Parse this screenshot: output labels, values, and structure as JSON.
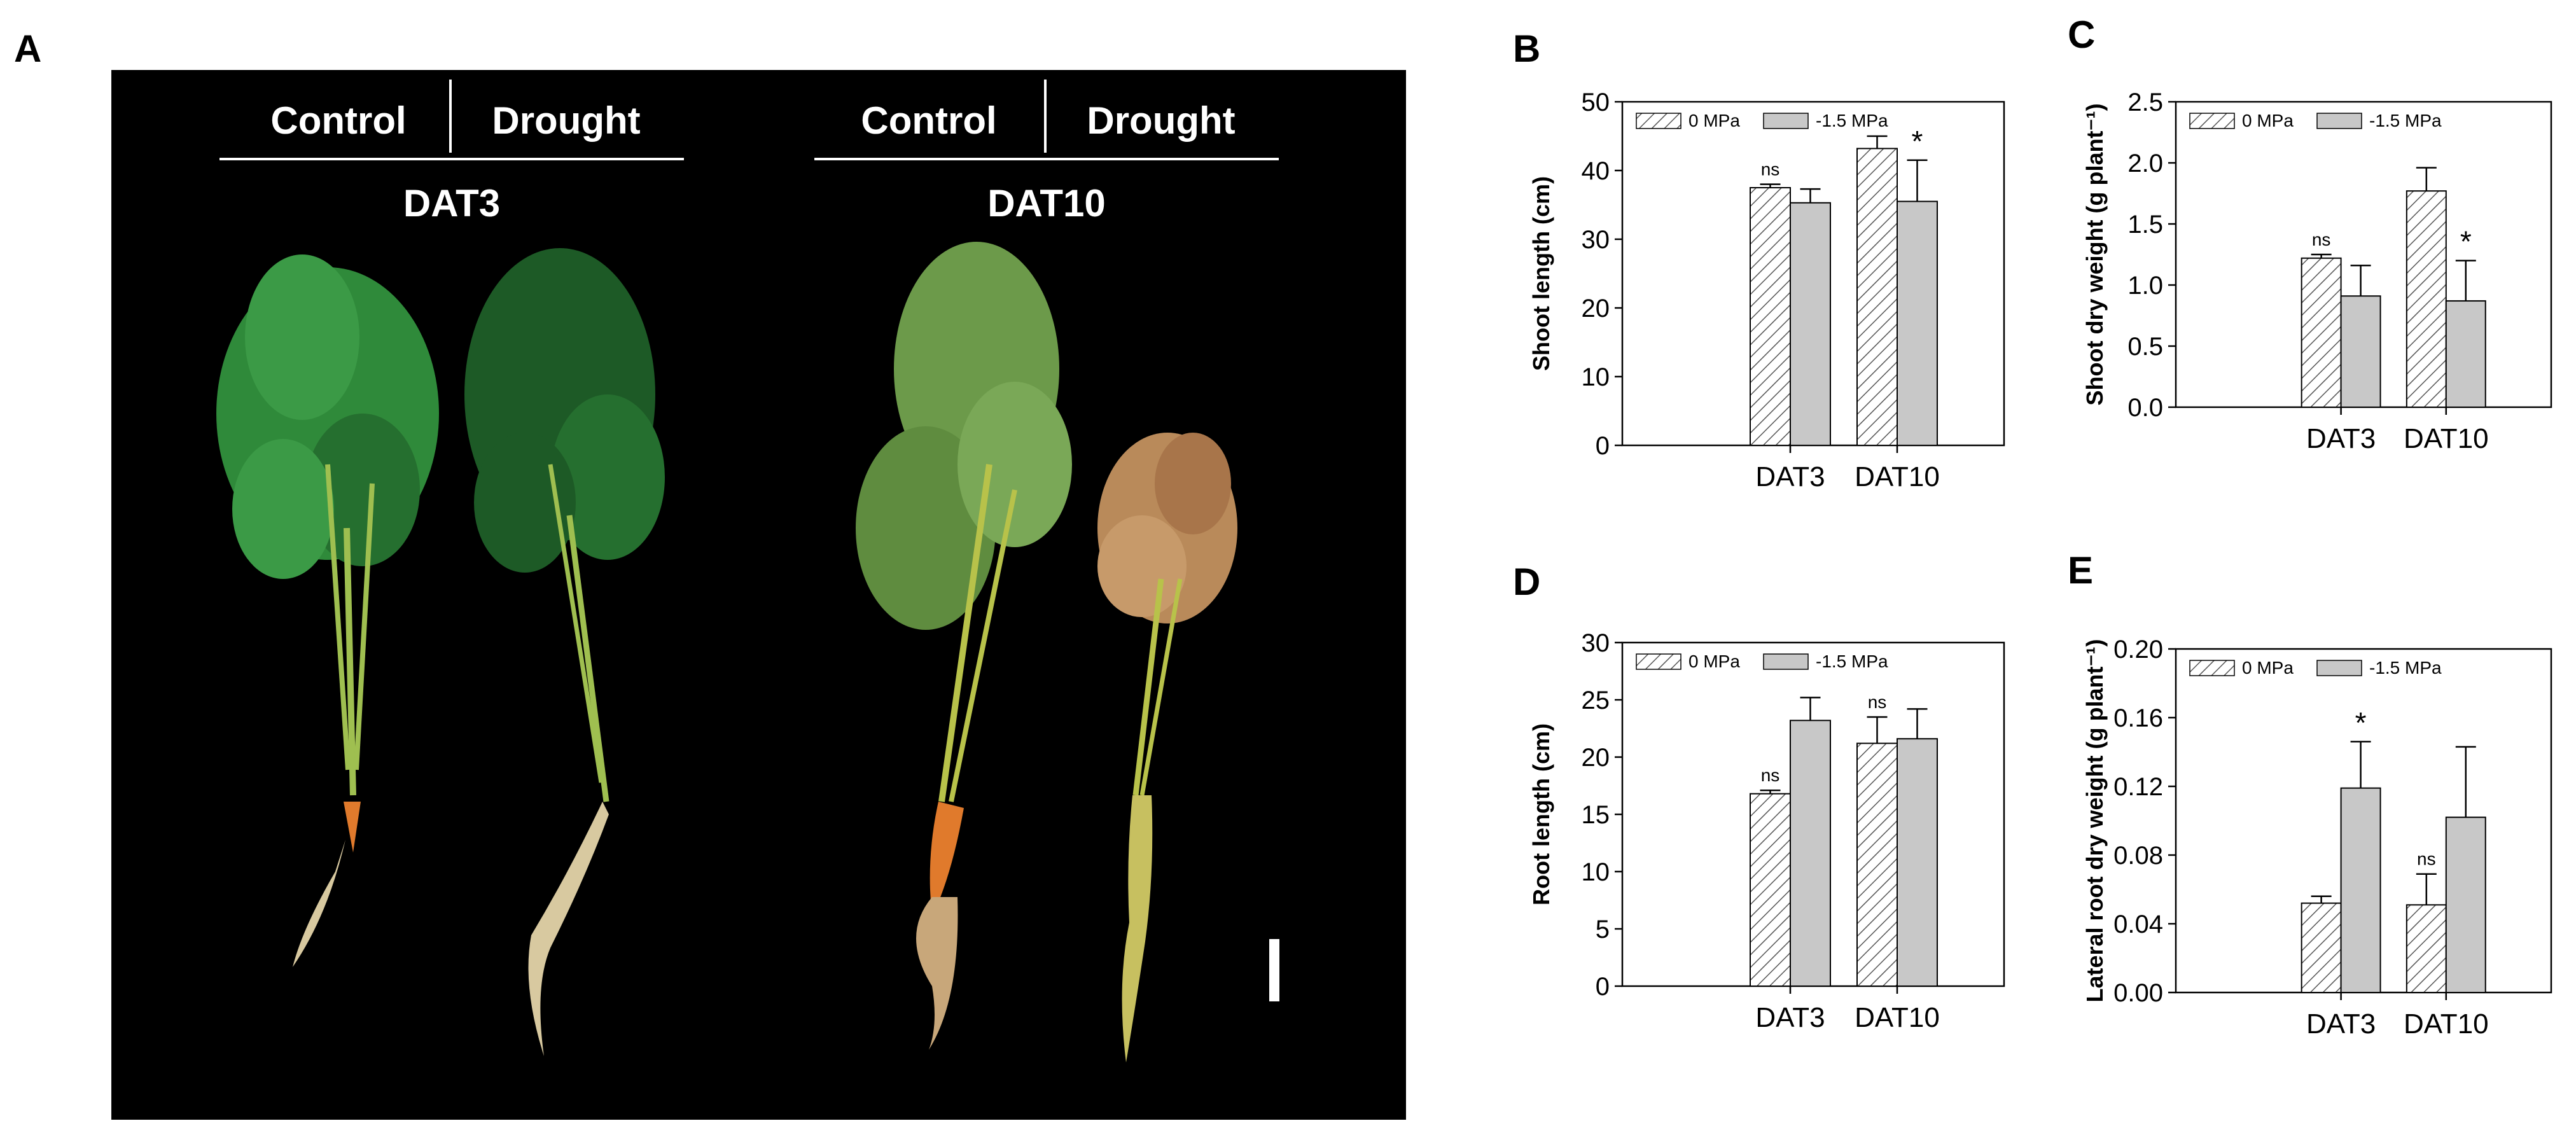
{
  "panel_labels": {
    "a": "A",
    "b": "B",
    "c": "C",
    "d": "D",
    "e": "E"
  },
  "photo": {
    "left_group": {
      "col1": "Control",
      "col2": "Drought",
      "title": "DAT3"
    },
    "right_group": {
      "col1": "Control",
      "col2": "Drought",
      "title": "DAT10"
    }
  },
  "colors": {
    "bar_fill": "#c8c8c8",
    "hatch_line": "#555555",
    "leaf_green": "#2f8a3a",
    "leaf_dark": "#1d5a26",
    "leaf_dry": "#b98a5a",
    "carrot_orange": "#e07a2c",
    "root_pale": "#d8c9a0",
    "stem_yellow": "#b8c24a"
  },
  "chart_data": [
    {
      "id": "B",
      "type": "bar",
      "categories": [
        "DAT3",
        "DAT10"
      ],
      "ylabel": "Shoot length (cm)",
      "ylim": [
        0,
        50
      ],
      "yticks": [
        0,
        10,
        20,
        30,
        40,
        50
      ],
      "ytick_labels": [
        "0",
        "10",
        "20",
        "30",
        "40",
        "50"
      ],
      "legend": "top-left",
      "series": [
        {
          "name": "0 MPa",
          "pattern": "hatched",
          "values": [
            37.5,
            43.2
          ],
          "errors": [
            0.5,
            1.8
          ]
        },
        {
          "name": "-1.5 MPa",
          "pattern": "solid",
          "values": [
            35.3,
            35.5
          ],
          "errors": [
            2.0,
            6.0
          ]
        }
      ],
      "annotations": [
        {
          "category": 0,
          "series": 0,
          "text": "ns"
        },
        {
          "category": 1,
          "series": 1,
          "text": "*"
        }
      ]
    },
    {
      "id": "C",
      "type": "bar",
      "categories": [
        "DAT3",
        "DAT10"
      ],
      "ylabel": "Shoot dry weight (g plant⁻¹)",
      "ylim": [
        0,
        2.5
      ],
      "yticks": [
        0,
        0.5,
        1.0,
        1.5,
        2.0,
        2.5
      ],
      "ytick_labels": [
        "0.0",
        "0.5",
        "1.0",
        "1.5",
        "2.0",
        "2.5"
      ],
      "legend": "top-left",
      "series": [
        {
          "name": "0 MPa",
          "pattern": "hatched",
          "values": [
            1.22,
            1.77
          ],
          "errors": [
            0.03,
            0.19
          ]
        },
        {
          "name": "-1.5 MPa",
          "pattern": "solid",
          "values": [
            0.91,
            0.87
          ],
          "errors": [
            0.25,
            0.33
          ]
        }
      ],
      "annotations": [
        {
          "category": 0,
          "series": 0,
          "text": "ns"
        },
        {
          "category": 1,
          "series": 1,
          "text": "*"
        }
      ]
    },
    {
      "id": "D",
      "type": "bar",
      "categories": [
        "DAT3",
        "DAT10"
      ],
      "ylabel": "Root length (cm)",
      "ylim": [
        0,
        30
      ],
      "yticks": [
        0,
        5,
        10,
        15,
        20,
        25,
        30
      ],
      "ytick_labels": [
        "0",
        "5",
        "10",
        "15",
        "20",
        "25",
        "30"
      ],
      "legend": "top-left",
      "series": [
        {
          "name": "0 MPa",
          "pattern": "hatched",
          "values": [
            16.8,
            21.2
          ],
          "errors": [
            0.3,
            2.3
          ]
        },
        {
          "name": "-1.5 MPa",
          "pattern": "solid",
          "values": [
            23.2,
            21.6
          ],
          "errors": [
            2.0,
            2.6
          ]
        }
      ],
      "annotations": [
        {
          "category": 0,
          "series": 0,
          "text": "ns"
        },
        {
          "category": 1,
          "series": 0,
          "text": "ns"
        }
      ]
    },
    {
      "id": "E",
      "type": "bar",
      "categories": [
        "DAT3",
        "DAT10"
      ],
      "ylabel": "Lateral root dry weight (g plant⁻¹)",
      "ylim": [
        0,
        0.2
      ],
      "yticks": [
        0,
        0.04,
        0.08,
        0.12,
        0.16,
        0.2
      ],
      "ytick_labels": [
        "0.00",
        "0.04",
        "0.08",
        "0.12",
        "0.16",
        "0.20"
      ],
      "legend": "top-left",
      "series": [
        {
          "name": "0 MPa",
          "pattern": "hatched",
          "values": [
            0.052,
            0.051
          ],
          "errors": [
            0.004,
            0.018
          ]
        },
        {
          "name": "-1.5 MPa",
          "pattern": "solid",
          "values": [
            0.119,
            0.102
          ],
          "errors": [
            0.027,
            0.041
          ]
        }
      ],
      "annotations": [
        {
          "category": 0,
          "series": 1,
          "text": "*"
        },
        {
          "category": 1,
          "series": 0,
          "text": "ns"
        }
      ]
    }
  ]
}
